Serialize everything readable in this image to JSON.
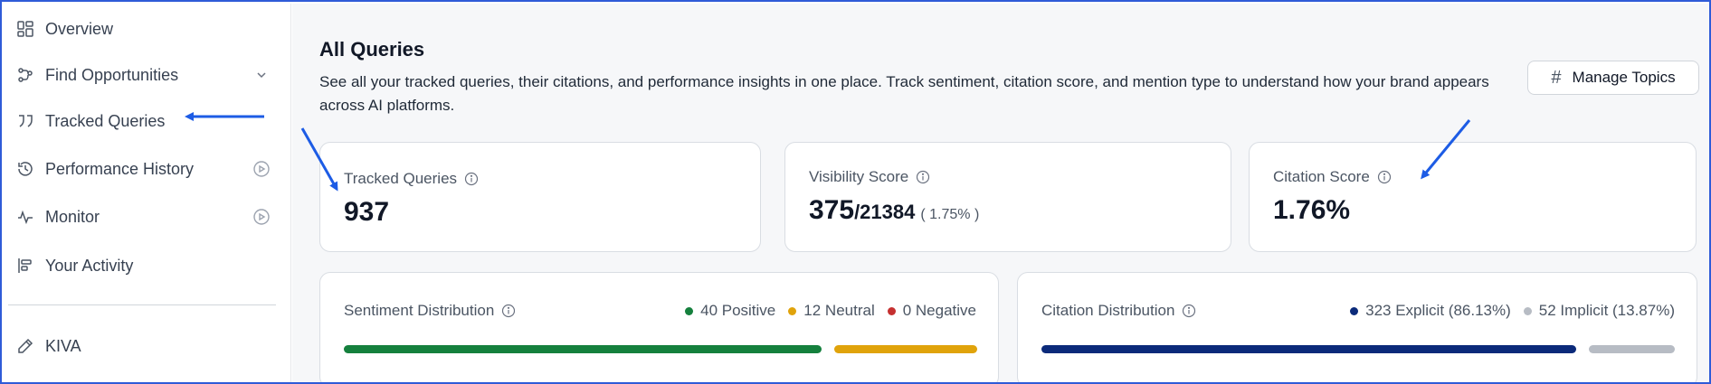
{
  "sidebar": {
    "items": [
      {
        "label": "Overview",
        "icon": "dashboard-icon"
      },
      {
        "label": "Find Opportunities",
        "icon": "network-icon"
      },
      {
        "label": "Tracked Queries",
        "icon": "quote-icon"
      },
      {
        "label": "Performance History",
        "icon": "history-icon"
      },
      {
        "label": "Monitor",
        "icon": "activity-icon"
      },
      {
        "label": "Your Activity",
        "icon": "align-left-icon"
      },
      {
        "label": "KIVA",
        "icon": "pencil-icon"
      }
    ]
  },
  "main": {
    "title": "All Queries",
    "description": "See all your tracked queries, their citations, and performance insights in one place. Track sentiment, citation score, and mention type to understand how your brand appears across AI platforms.",
    "manage_topics_label": "Manage Topics"
  },
  "metrics": {
    "tracked_queries": {
      "label": "Tracked Queries",
      "value": "937"
    },
    "visibility_score": {
      "label": "Visibility Score",
      "value": "375",
      "total": "/21384",
      "percent": "( 1.75% )"
    },
    "citation_score": {
      "label": "Citation Score",
      "value": "1.76%"
    }
  },
  "sentiment": {
    "label": "Sentiment Distribution",
    "positive": "40 Positive",
    "neutral": "12 Neutral",
    "negative": "0 Negative",
    "positive_fraction": 0.769,
    "neutral_fraction": 0.231,
    "colors": {
      "positive": "#15803d",
      "neutral": "#e0a30b",
      "negative": "#c53030"
    }
  },
  "citation": {
    "label": "Citation Distribution",
    "explicit": "323 Explicit (86.13%)",
    "implicit": "52 Implicit (13.87%)",
    "explicit_fraction": 0.8613,
    "implicit_fraction": 0.1387,
    "colors": {
      "explicit": "#0b2a7a",
      "implicit": "#b7bcc4"
    }
  },
  "annotation_color": "#1d5ce5"
}
